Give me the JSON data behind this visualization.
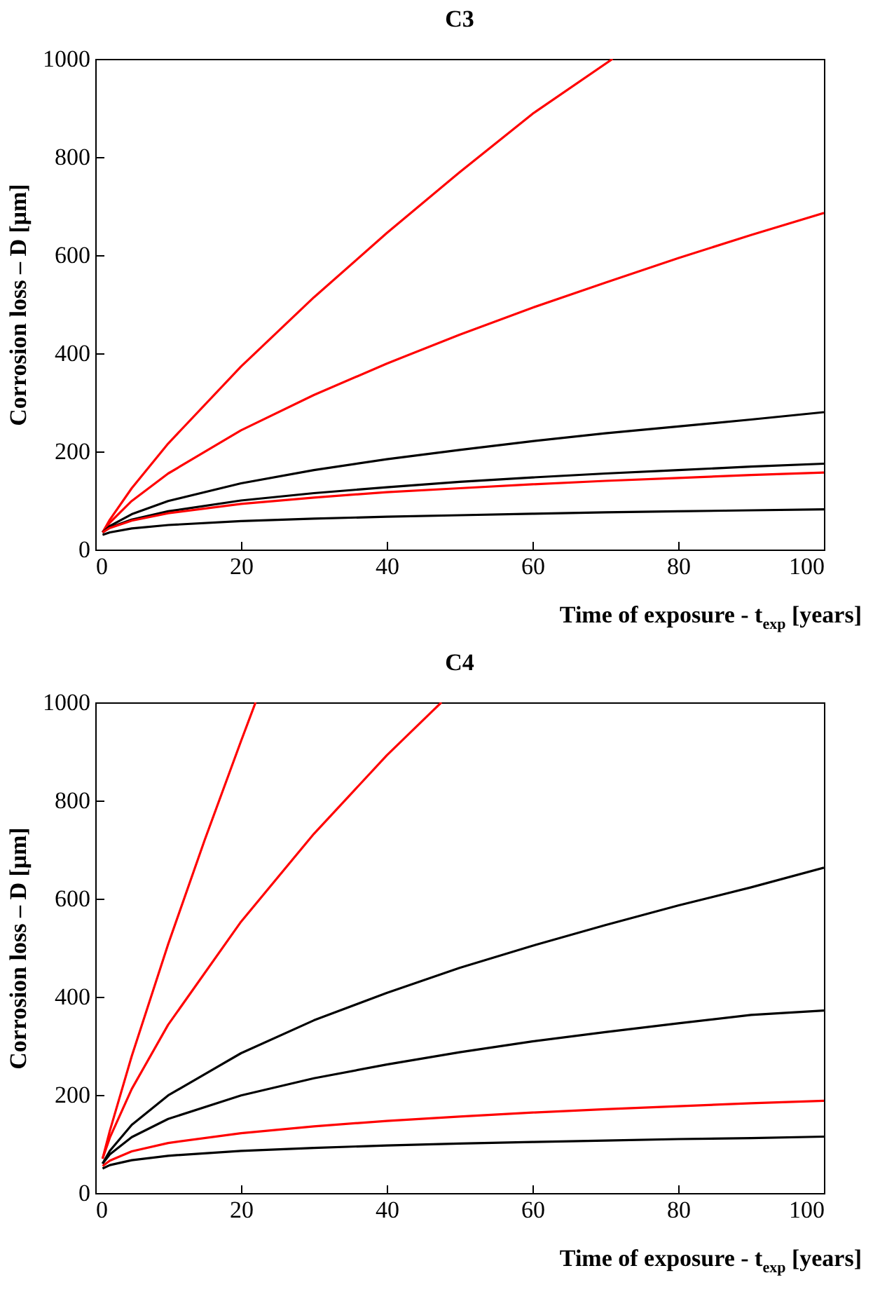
{
  "chart_data": [
    {
      "type": "line",
      "title": "C3",
      "xlabel": "Time of exposure - t$_{exp}$ [years]",
      "ylabel": "Corrosion loss – D [μm]",
      "xlim": [
        0,
        100
      ],
      "xticks": [
        0,
        20,
        40,
        60,
        80,
        100
      ],
      "ylim": [
        0,
        1000
      ],
      "yticks": [
        0,
        200,
        400,
        600,
        800,
        1000
      ],
      "grid": false,
      "series": [
        {
          "color": "#ff0000",
          "x": [
            1,
            2,
            5,
            10,
            20,
            30,
            40,
            50,
            60,
            71
          ],
          "values": [
            35,
            61,
            125,
            216,
            373,
            514,
            645,
            769,
            888,
            1000
          ]
        },
        {
          "color": "#ff0000",
          "x": [
            1,
            2,
            5,
            10,
            20,
            30,
            40,
            50,
            60,
            70,
            80,
            90,
            100
          ],
          "values": [
            35,
            55,
            99,
            155,
            243,
            315,
            379,
            438,
            493,
            544,
            594,
            641,
            686
          ]
        },
        {
          "color": "#000000",
          "x": [
            1,
            2,
            5,
            10,
            20,
            30,
            40,
            50,
            60,
            70,
            80,
            90,
            100
          ],
          "values": [
            35,
            48,
            72,
            99,
            135,
            162,
            184,
            203,
            221,
            237,
            251,
            265,
            280
          ]
        },
        {
          "color": "#000000",
          "x": [
            1,
            2,
            5,
            10,
            20,
            30,
            40,
            50,
            60,
            70,
            80,
            90,
            100
          ],
          "values": [
            35,
            45,
            61,
            78,
            100,
            115,
            127,
            138,
            147,
            155,
            162,
            169,
            175
          ]
        },
        {
          "color": "#ff0000",
          "x": [
            1,
            2,
            5,
            10,
            20,
            30,
            40,
            50,
            60,
            70,
            80,
            90,
            100
          ],
          "values": [
            35,
            44,
            59,
            74,
            93,
            106,
            117,
            125,
            133,
            140,
            146,
            152,
            157
          ]
        },
        {
          "color": "#000000",
          "x": [
            1,
            2,
            5,
            10,
            20,
            30,
            40,
            50,
            60,
            70,
            80,
            90,
            100
          ],
          "values": [
            30,
            35,
            43,
            50,
            58,
            63,
            67,
            70,
            73,
            76,
            78,
            80,
            82
          ]
        }
      ]
    },
    {
      "type": "line",
      "title": "C4",
      "xlabel": "Time of exposure - t$_{exp}$ [years]",
      "ylabel": "Corrosion loss – D [μm]",
      "xlim": [
        0,
        100
      ],
      "xticks": [
        0,
        20,
        40,
        60,
        80,
        100
      ],
      "ylim": [
        0,
        1000
      ],
      "yticks": [
        0,
        200,
        400,
        600,
        800,
        1000
      ],
      "grid": false,
      "series": [
        {
          "color": "#ff0000",
          "x": [
            1,
            2,
            5,
            10,
            15,
            20,
            22
          ],
          "values": [
            70,
            127,
            279,
            507,
            719,
            921,
            1000
          ]
        },
        {
          "color": "#ff0000",
          "x": [
            1,
            2,
            5,
            10,
            20,
            30,
            40,
            47.5
          ],
          "values": [
            70,
            113,
            212,
            343,
            553,
            732,
            892,
            1000
          ]
        },
        {
          "color": "#000000",
          "x": [
            1,
            2,
            5,
            10,
            20,
            30,
            40,
            50,
            60,
            70,
            80,
            90,
            100
          ],
          "values": [
            60,
            86,
            139,
            199,
            285,
            352,
            408,
            459,
            504,
            546,
            586,
            623,
            663
          ]
        },
        {
          "color": "#000000",
          "x": [
            1,
            2,
            5,
            10,
            20,
            30,
            40,
            50,
            60,
            70,
            80,
            90,
            100
          ],
          "values": [
            60,
            79,
            114,
            151,
            199,
            234,
            262,
            287,
            309,
            328,
            346,
            363,
            372
          ]
        },
        {
          "color": "#ff0000",
          "x": [
            1,
            2,
            5,
            10,
            20,
            30,
            40,
            50,
            60,
            70,
            80,
            90,
            100
          ],
          "values": [
            55,
            66,
            85,
            102,
            122,
            136,
            147,
            156,
            164,
            171,
            177,
            183,
            188
          ]
        },
        {
          "color": "#000000",
          "x": [
            1,
            2,
            5,
            10,
            20,
            30,
            40,
            50,
            60,
            70,
            80,
            90,
            100
          ],
          "values": [
            50,
            57,
            67,
            76,
            86,
            92,
            97,
            101,
            104,
            107,
            110,
            112,
            115
          ]
        }
      ]
    }
  ]
}
